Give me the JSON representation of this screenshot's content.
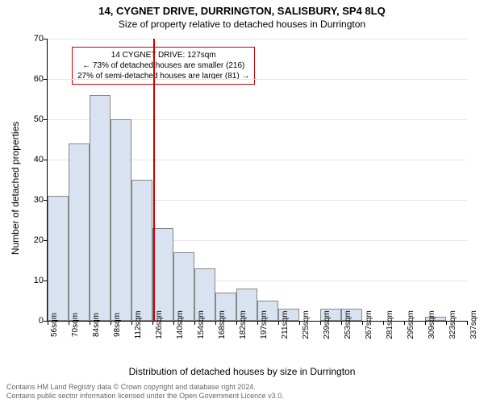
{
  "title": "14, CYGNET DRIVE, DURRINGTON, SALISBURY, SP4 8LQ",
  "subtitle": "Size of property relative to detached houses in Durrington",
  "chart": {
    "type": "histogram",
    "ylabel": "Number of detached properties",
    "xlabel": "Distribution of detached houses by size in Durrington",
    "ylim": [
      0,
      70
    ],
    "ytick_step": 10,
    "yticks": [
      0,
      10,
      20,
      30,
      40,
      50,
      60,
      70
    ],
    "xticks": [
      "56sqm",
      "70sqm",
      "84sqm",
      "98sqm",
      "112sqm",
      "126sqm",
      "140sqm",
      "154sqm",
      "168sqm",
      "182sqm",
      "197sqm",
      "211sqm",
      "225sqm",
      "239sqm",
      "253sqm",
      "267sqm",
      "281sqm",
      "295sqm",
      "309sqm",
      "323sqm",
      "337sqm"
    ],
    "values": [
      31,
      44,
      56,
      50,
      35,
      23,
      17,
      13,
      7,
      8,
      5,
      3,
      0,
      3,
      3,
      0,
      0,
      0,
      1,
      0
    ],
    "bar_fill": "#d8e2f0",
    "bar_border": "#888888",
    "grid_color": "#e6e6e6",
    "background_color": "#ffffff",
    "reference_line": {
      "x_index": 5.07,
      "color": "#cc0000",
      "width": 2
    },
    "annotation": {
      "line1": "14 CYGNET DRIVE: 127sqm",
      "line2": "← 73% of detached houses are smaller (216)",
      "line3": "27% of semi-detached houses are larger (81) →",
      "border_color": "#cc0000"
    },
    "title_fontsize": 13,
    "subtitle_fontsize": 12,
    "label_fontsize": 12,
    "tick_fontsize": 11
  },
  "footer": {
    "line1": "Contains HM Land Registry data © Crown copyright and database right 2024.",
    "line2": "Contains public sector information licensed under the Open Government Licence v3.0."
  }
}
